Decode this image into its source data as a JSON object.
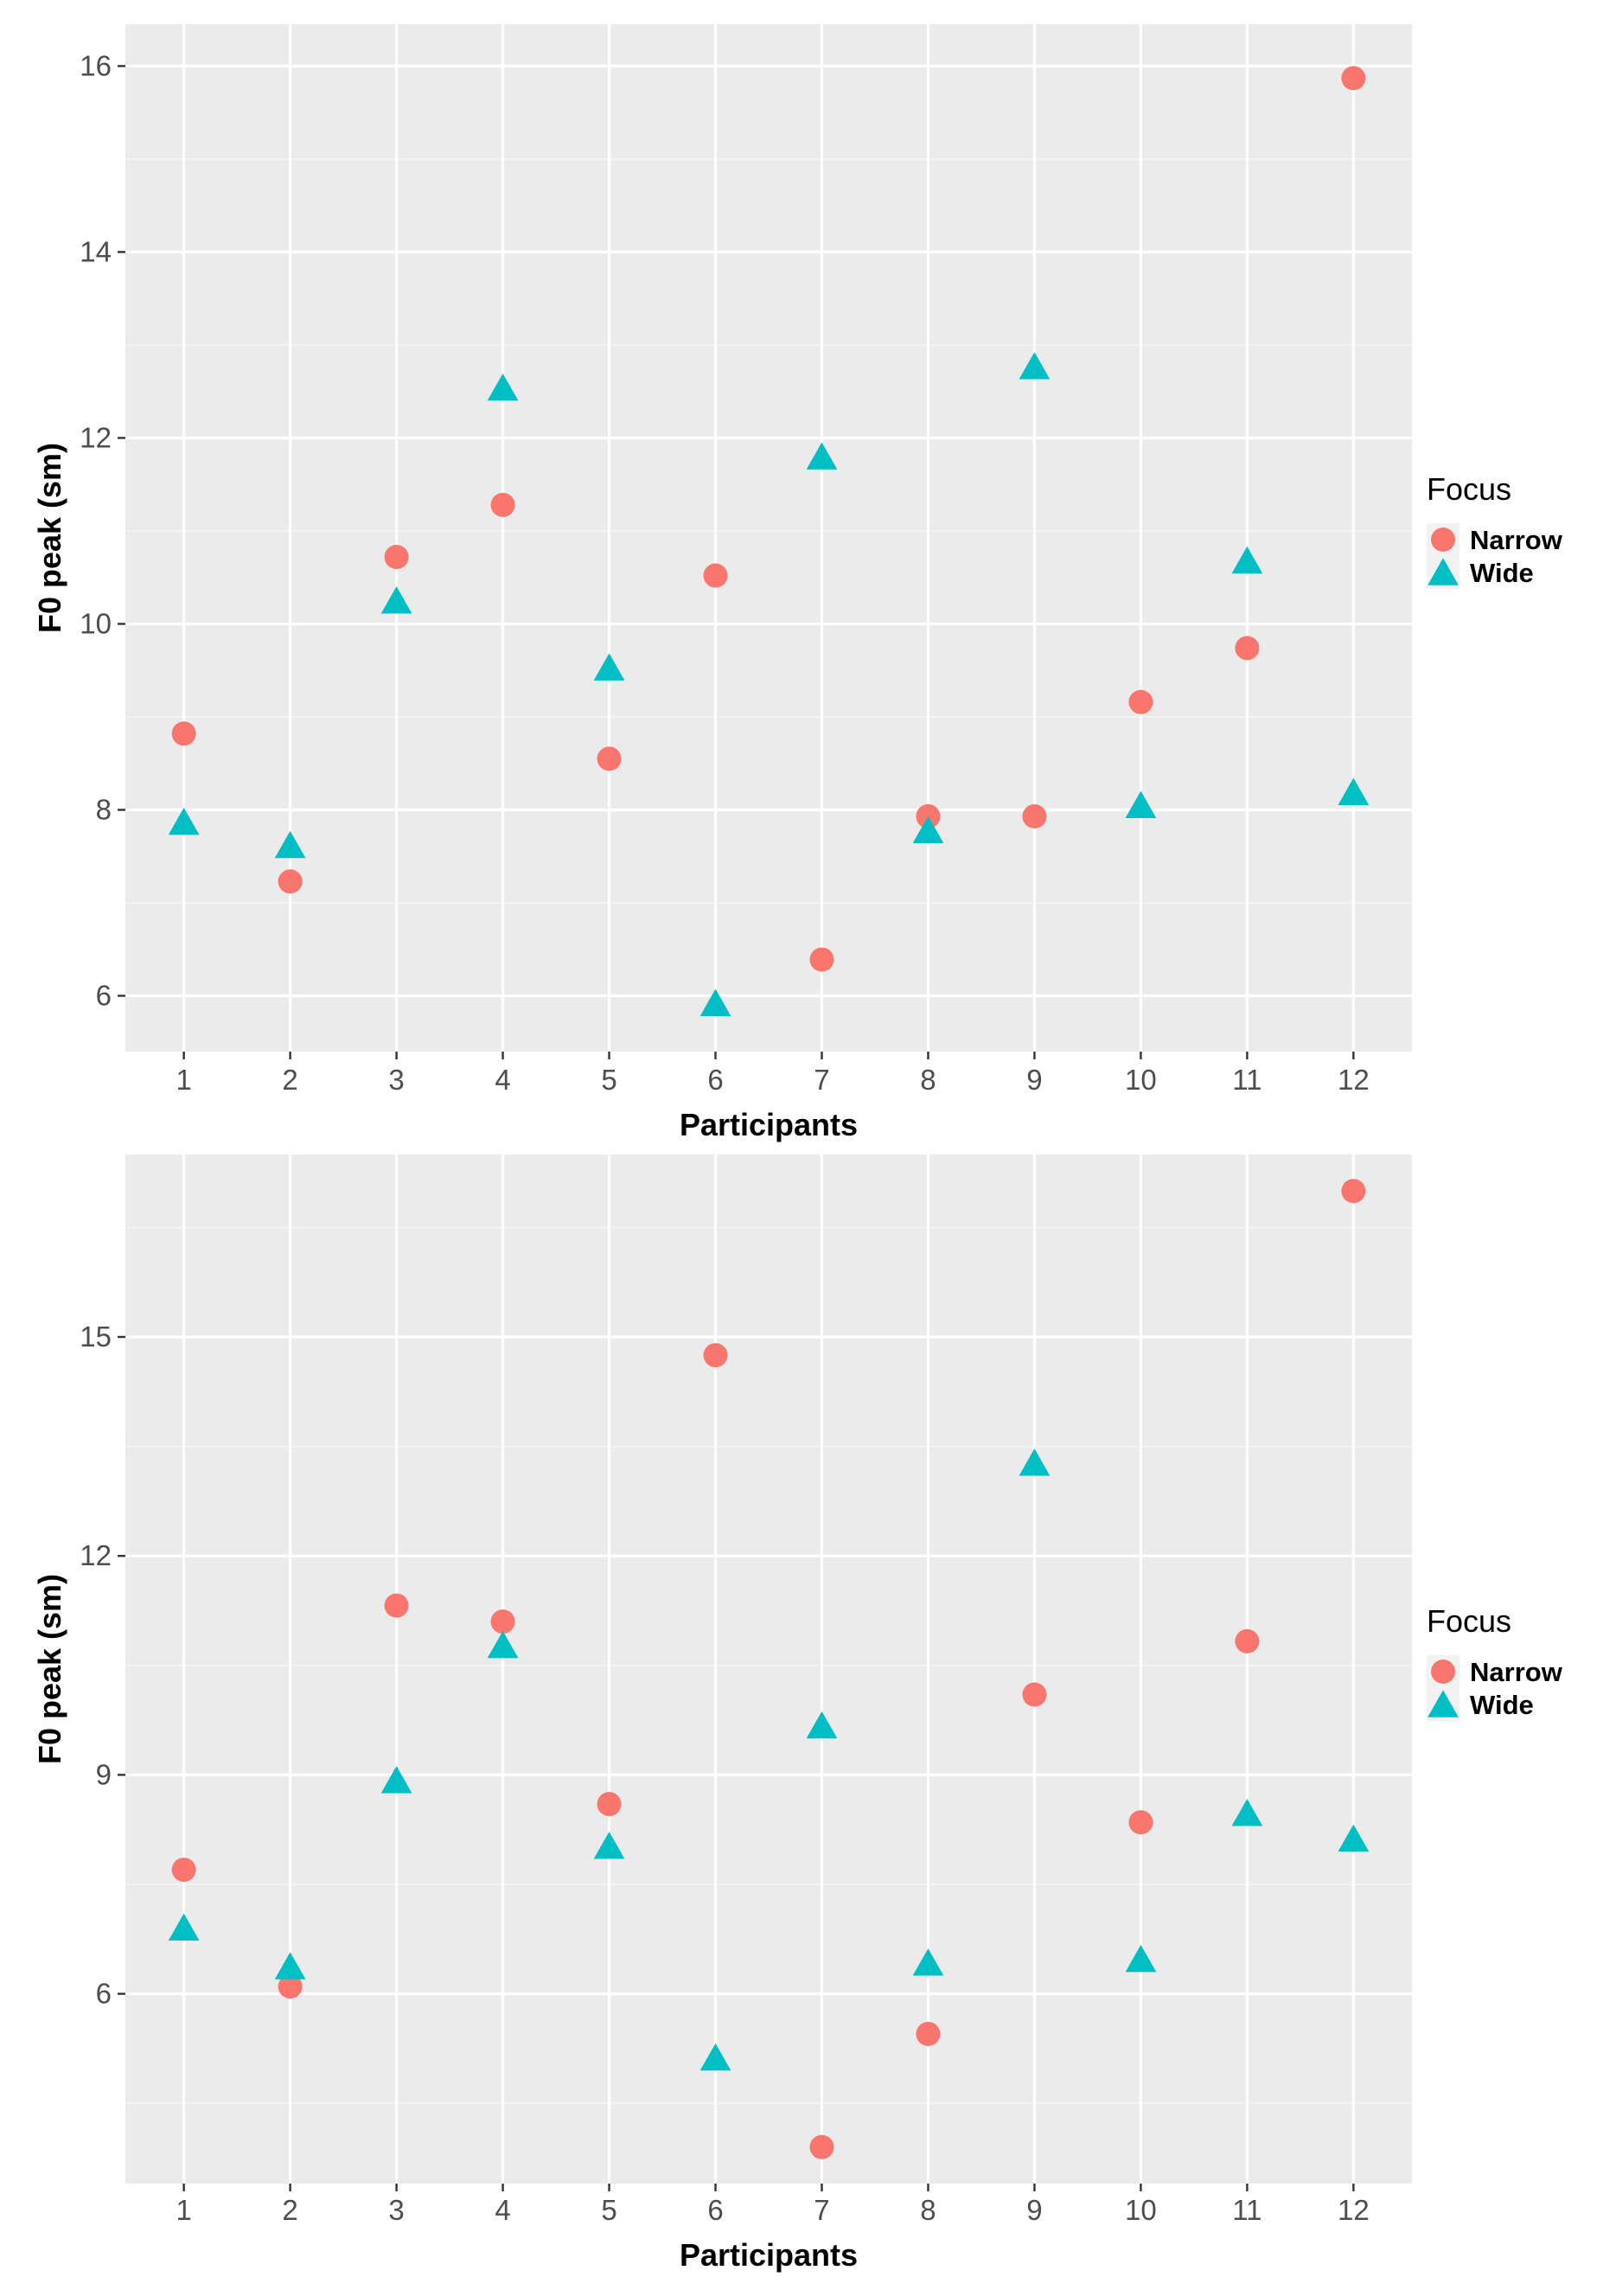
{
  "chart_data": [
    {
      "type": "scatter",
      "xlabel": "Participants",
      "ylabel": "F0 peak (sm)",
      "x_ticks": [
        1,
        2,
        3,
        4,
        5,
        6,
        7,
        8,
        9,
        10,
        11,
        12
      ],
      "y_ticks": [
        6,
        8,
        10,
        12,
        14,
        16
      ],
      "xlim": [
        0.45,
        12.55
      ],
      "ylim": [
        5.4,
        16.45
      ],
      "grid": true,
      "legend": {
        "title": "Focus",
        "position": "right"
      },
      "series": [
        {
          "name": "Narrow",
          "marker": "circle",
          "color": "#F8766D",
          "points": [
            {
              "x": 1,
              "y": 8.82
            },
            {
              "x": 2,
              "y": 7.23
            },
            {
              "x": 3,
              "y": 10.72
            },
            {
              "x": 4,
              "y": 11.28
            },
            {
              "x": 5,
              "y": 8.55
            },
            {
              "x": 6,
              "y": 10.52
            },
            {
              "x": 7,
              "y": 6.39
            },
            {
              "x": 8,
              "y": 7.93
            },
            {
              "x": 9,
              "y": 7.93
            },
            {
              "x": 10,
              "y": 9.16
            },
            {
              "x": 11,
              "y": 9.74
            },
            {
              "x": 12,
              "y": 15.87
            }
          ]
        },
        {
          "name": "Wide",
          "marker": "triangle",
          "color": "#00BFC4",
          "points": [
            {
              "x": 1,
              "y": 7.85
            },
            {
              "x": 2,
              "y": 7.6
            },
            {
              "x": 3,
              "y": 10.23
            },
            {
              "x": 4,
              "y": 12.52
            },
            {
              "x": 5,
              "y": 9.51
            },
            {
              "x": 6,
              "y": 5.9
            },
            {
              "x": 7,
              "y": 11.78
            },
            {
              "x": 8,
              "y": 7.76
            },
            {
              "x": 9,
              "y": 12.75
            },
            {
              "x": 10,
              "y": 8.03
            },
            {
              "x": 11,
              "y": 10.66
            },
            {
              "x": 12,
              "y": 8.17
            }
          ]
        }
      ]
    },
    {
      "type": "scatter",
      "xlabel": "Participants",
      "ylabel": "F0 peak (sm)",
      "x_ticks": [
        1,
        2,
        3,
        4,
        5,
        6,
        7,
        8,
        9,
        10,
        11,
        12
      ],
      "y_ticks": [
        6,
        9,
        12,
        15
      ],
      "xlim": [
        0.45,
        12.55
      ],
      "ylim": [
        3.4,
        17.5
      ],
      "grid": true,
      "legend": {
        "title": "Focus",
        "position": "right"
      },
      "series": [
        {
          "name": "Narrow",
          "marker": "circle",
          "color": "#F8766D",
          "points": [
            {
              "x": 1,
              "y": 7.7
            },
            {
              "x": 2,
              "y": 6.1
            },
            {
              "x": 3,
              "y": 11.32
            },
            {
              "x": 4,
              "y": 11.1
            },
            {
              "x": 5,
              "y": 8.6
            },
            {
              "x": 6,
              "y": 14.75
            },
            {
              "x": 7,
              "y": 3.9
            },
            {
              "x": 8,
              "y": 5.45
            },
            {
              "x": 9,
              "y": 10.1
            },
            {
              "x": 10,
              "y": 8.35
            },
            {
              "x": 11,
              "y": 10.83
            },
            {
              "x": 12,
              "y": 17.0
            }
          ]
        },
        {
          "name": "Wide",
          "marker": "triangle",
          "color": "#00BFC4",
          "points": [
            {
              "x": 1,
              "y": 6.88
            },
            {
              "x": 2,
              "y": 6.35
            },
            {
              "x": 3,
              "y": 8.9
            },
            {
              "x": 4,
              "y": 10.75
            },
            {
              "x": 5,
              "y": 8.0
            },
            {
              "x": 6,
              "y": 5.1
            },
            {
              "x": 7,
              "y": 9.65
            },
            {
              "x": 8,
              "y": 6.4
            },
            {
              "x": 9,
              "y": 13.25
            },
            {
              "x": 10,
              "y": 6.45
            },
            {
              "x": 11,
              "y": 8.45
            },
            {
              "x": 12,
              "y": 8.1
            }
          ]
        }
      ]
    }
  ]
}
